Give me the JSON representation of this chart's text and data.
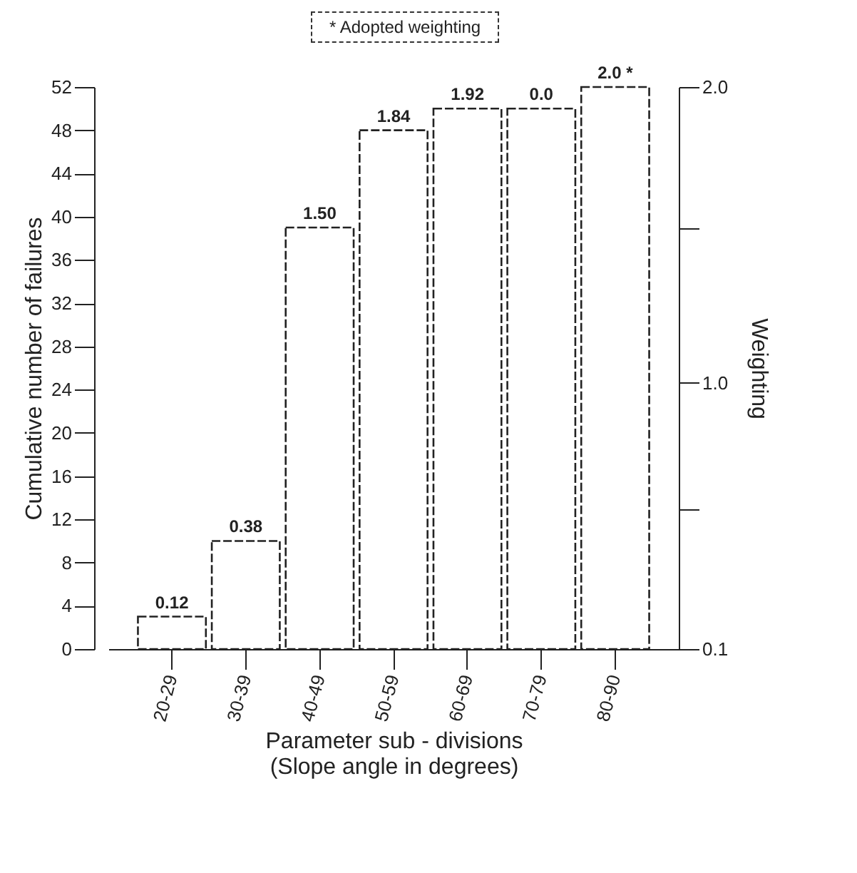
{
  "chart_data": {
    "type": "bar",
    "categories": [
      "20-29",
      "30-39",
      "40-49",
      "50-59",
      "60-69",
      "70-79",
      "80-90"
    ],
    "values": [
      3,
      10,
      39,
      48,
      50,
      50,
      52
    ],
    "color": "#ffffff",
    "xlabel": "Parameter sub - divisions\n(Slope angle in degrees)",
    "ylabel": "Cumulative number of failures",
    "y2label": "Weighting",
    "ylim": [
      0,
      52
    ],
    "yticks": [
      0,
      4,
      8,
      12,
      16,
      20,
      24,
      28,
      32,
      36,
      40,
      44,
      48,
      52
    ],
    "y2lim": [
      0.1,
      2.0
    ],
    "y2ticks": [
      0.1,
      {
        "value": 0.575,
        "label": null
      },
      {
        "value": 1,
        "label": "1.0"
      },
      {
        "value": 1.525,
        "label": null
      },
      {
        "value": 2,
        "label": "2.0"
      }
    ],
    "annotations": [
      "* Adopted weighting",
      {
        "text": "0.12",
        "x": "20-29",
        "y": 3
      },
      {
        "text": "0.38",
        "x": "30-39",
        "y": 10
      },
      {
        "text": "1.50",
        "x": "40-49",
        "y": 39
      },
      {
        "text": "1.84",
        "x": "50-59",
        "y": 48
      },
      {
        "text": "1.92",
        "x": "60-69",
        "y": 50
      },
      {
        "text": "0.0",
        "x": "70-79",
        "y": 50
      },
      {
        "text": "2.0 *",
        "x": "80-90",
        "y": 52
      }
    ],
    "grid": false
  }
}
